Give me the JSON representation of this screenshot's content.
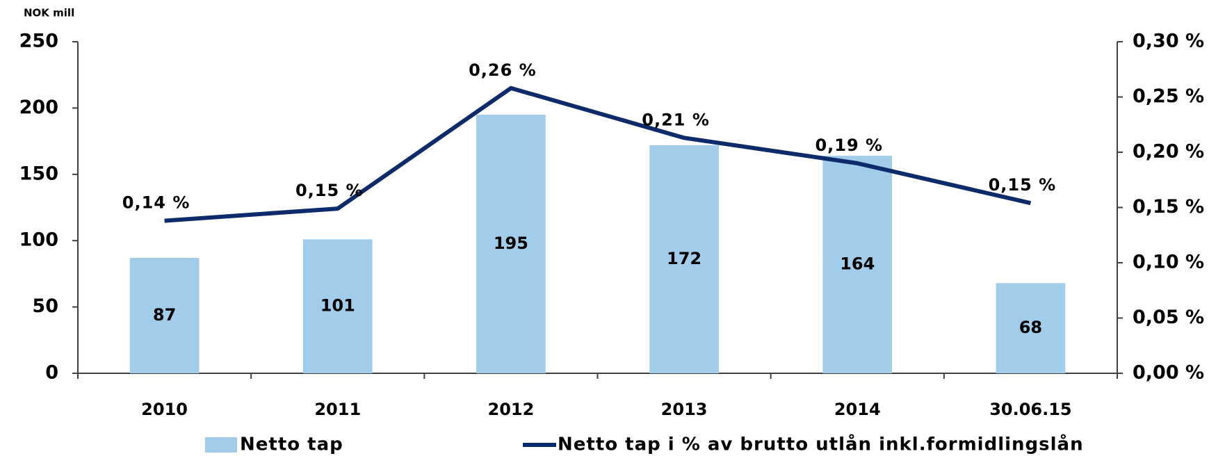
{
  "chart_data": {
    "type": "bar_line",
    "y_axis_label": "NOK mill",
    "categories": [
      "2010",
      "2011",
      "2012",
      "2013",
      "2014",
      "30.06.15"
    ],
    "series": [
      {
        "name": "Netto tap",
        "type": "bar",
        "color": "#a1cdeb",
        "values": [
          87,
          101,
          195,
          172,
          164,
          68
        ]
      },
      {
        "name": "Netto tap i % av brutto utlån inkl.formidlingslån",
        "type": "line",
        "axis": "y2",
        "color": "#0d2a6b",
        "values": [
          0.138,
          0.149,
          0.258,
          0.213,
          0.19,
          0.154
        ],
        "value_labels": [
          "0,14 %",
          "0,15 %",
          "0,26 %",
          "0,21 %",
          "0,19 %",
          "0,15 %"
        ]
      }
    ],
    "ylim": [
      0,
      250
    ],
    "yticks": [
      0,
      50,
      100,
      150,
      200,
      250
    ],
    "y2lim": [
      0,
      0.3
    ],
    "y2ticks": [
      {
        "value": 0,
        "label": "0,00 %"
      },
      {
        "value": 0.05,
        "label": "0,05 %"
      },
      {
        "value": 0.1,
        "label": "0,10 %"
      },
      {
        "value": 0.15,
        "label": "0,15 %"
      },
      {
        "value": 0.2,
        "label": "0,20 %"
      },
      {
        "value": 0.25,
        "label": "0,25 %"
      },
      {
        "value": 0.3,
        "label": "0,30 %"
      }
    ],
    "grid": false
  }
}
